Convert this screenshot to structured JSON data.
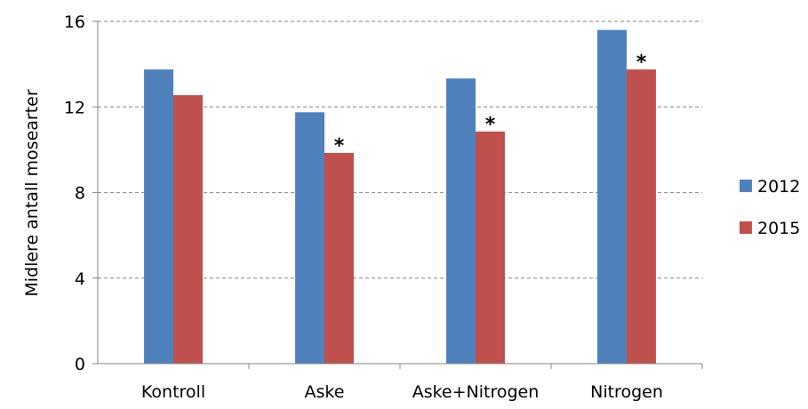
{
  "chart_data": {
    "type": "bar",
    "title": "",
    "xlabel": "",
    "ylabel": "Midlere antall mosearter",
    "categories": [
      "Kontroll",
      "Aske",
      "Aske+Nitrogen",
      "Nitrogen"
    ],
    "series": [
      {
        "name": "2012",
        "values": [
          13.75,
          11.75,
          13.33,
          15.6
        ],
        "color": "#4F81BD"
      },
      {
        "name": "2015",
        "values": [
          12.55,
          9.85,
          10.85,
          13.75
        ],
        "color": "#C0504D"
      }
    ],
    "annotations": [
      {
        "series": "2015",
        "category": "Aske",
        "text": "*"
      },
      {
        "series": "2015",
        "category": "Aske+Nitrogen",
        "text": "*"
      },
      {
        "series": "2015",
        "category": "Nitrogen",
        "text": "*"
      }
    ],
    "ylim": [
      0,
      16
    ],
    "yticks": [
      0,
      4,
      8,
      12,
      16
    ],
    "grid": true,
    "grid_style": "dashed",
    "legend_position": "right"
  }
}
